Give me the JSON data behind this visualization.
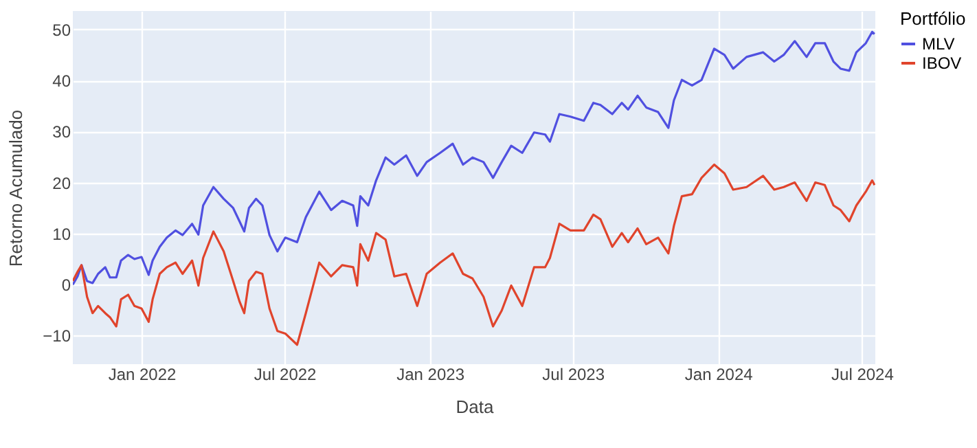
{
  "chart_data": {
    "type": "line",
    "xlabel": "Data",
    "ylabel": "Retorno Acumulado",
    "legend_title": "Portfólio",
    "legend": "top right",
    "grid": true,
    "line_style": "solid",
    "marker": "none",
    "xlim": [
      "2021-10-06",
      "2024-07-18"
    ],
    "xticks": [
      {
        "value": "2022-01-01",
        "label": "Jan 2022"
      },
      {
        "value": "2022-07-01",
        "label": "Jul 2022"
      },
      {
        "value": "2023-01-01",
        "label": "Jan 2023"
      },
      {
        "value": "2023-07-01",
        "label": "Jul 2023"
      },
      {
        "value": "2024-01-01",
        "label": "Jan 2024"
      },
      {
        "value": "2024-07-01",
        "label": "Jul 2024"
      }
    ],
    "ylim": [
      -15.6,
      53.6
    ],
    "yticks": [
      -10,
      0,
      10,
      20,
      30,
      40,
      50
    ],
    "x": [
      "2021-10-06",
      "2021-10-12",
      "2021-10-17",
      "2021-10-24",
      "2021-10-31",
      "2021-11-07",
      "2021-11-16",
      "2021-11-22",
      "2021-11-30",
      "2021-12-06",
      "2021-12-15",
      "2021-12-23",
      "2022-01-01",
      "2022-01-10",
      "2022-01-15",
      "2022-01-24",
      "2022-02-02",
      "2022-02-13",
      "2022-02-22",
      "2022-03-06",
      "2022-03-14",
      "2022-03-20",
      "2022-04-02",
      "2022-04-15",
      "2022-04-27",
      "2022-05-05",
      "2022-05-11",
      "2022-05-17",
      "2022-05-26",
      "2022-06-03",
      "2022-06-12",
      "2022-06-22",
      "2022-07-02",
      "2022-07-17",
      "2022-07-28",
      "2022-08-14",
      "2022-08-29",
      "2022-09-12",
      "2022-09-26",
      "2022-10-01",
      "2022-10-05",
      "2022-10-15",
      "2022-10-25",
      "2022-11-06",
      "2022-11-17",
      "2022-12-02",
      "2022-12-16",
      "2022-12-28",
      "2023-01-14",
      "2023-01-30",
      "2023-02-12",
      "2023-02-24",
      "2023-03-10",
      "2023-03-22",
      "2023-04-02",
      "2023-04-14",
      "2023-04-28",
      "2023-05-13",
      "2023-05-27",
      "2023-06-02",
      "2023-06-14",
      "2023-06-28",
      "2023-07-15",
      "2023-07-27",
      "2023-08-05",
      "2023-08-20",
      "2023-09-01",
      "2023-09-09",
      "2023-09-21",
      "2023-10-02",
      "2023-10-17",
      "2023-10-30",
      "2023-11-06",
      "2023-11-16",
      "2023-11-29",
      "2023-12-11",
      "2023-12-27",
      "2024-01-09",
      "2024-01-20",
      "2024-02-06",
      "2024-02-27",
      "2024-03-12",
      "2024-03-24",
      "2024-04-07",
      "2024-04-22",
      "2024-05-03",
      "2024-05-15",
      "2024-05-26",
      "2024-06-04",
      "2024-06-15",
      "2024-06-24",
      "2024-07-06",
      "2024-07-14",
      "2024-07-17"
    ],
    "series": [
      {
        "name": "MLV",
        "color": "#5050e0",
        "values": [
          0,
          1.6,
          3.8,
          0.7,
          0.3,
          2.1,
          3.4,
          1.4,
          1.4,
          4.7,
          5.8,
          5.0,
          5.4,
          1.9,
          4.7,
          7.4,
          9.2,
          10.6,
          9.7,
          11.9,
          9.8,
          15.5,
          19.1,
          16.8,
          15.0,
          12.4,
          10.4,
          15.0,
          16.8,
          15.5,
          9.7,
          6.5,
          9.2,
          8.3,
          13.2,
          18.2,
          14.6,
          16.4,
          15.5,
          11.5,
          17.3,
          15.5,
          20.4,
          24.9,
          23.5,
          25.3,
          21.3,
          24.0,
          25.8,
          27.6,
          23.5,
          24.9,
          24.0,
          20.9,
          24.0,
          27.2,
          25.8,
          29.8,
          29.4,
          28.0,
          33.4,
          32.9,
          32.1,
          35.6,
          35.2,
          33.4,
          35.6,
          34.3,
          37.0,
          34.7,
          33.8,
          30.7,
          36.1,
          40.1,
          39.0,
          40.1,
          46.2,
          45.0,
          42.3,
          44.6,
          45.5,
          43.7,
          45.0,
          47.7,
          44.6,
          47.3,
          47.3,
          43.7,
          42.3,
          41.9,
          45.5,
          47.3,
          49.5,
          49.1
        ]
      },
      {
        "name": "IBOV",
        "color": "#e0442c",
        "values": [
          0.7,
          2.5,
          3.8,
          -2.4,
          -5.6,
          -4.2,
          -5.6,
          -6.4,
          -8.2,
          -2.9,
          -2.0,
          -4.2,
          -4.7,
          -7.3,
          -2.9,
          2.1,
          3.4,
          4.3,
          2.1,
          4.7,
          -0.2,
          5.2,
          10.4,
          6.5,
          0.7,
          -3.3,
          -5.6,
          0.7,
          2.5,
          2.1,
          -4.7,
          -9.1,
          -9.6,
          -11.8,
          -5.6,
          4.3,
          1.6,
          3.8,
          3.4,
          -0.2,
          7.9,
          4.7,
          10.1,
          8.8,
          1.6,
          2.1,
          -4.2,
          2.1,
          4.3,
          6.1,
          2.1,
          1.2,
          -2.4,
          -8.2,
          -5.1,
          -0.2,
          -4.2,
          3.4,
          3.4,
          5.2,
          11.9,
          10.6,
          10.6,
          13.7,
          12.8,
          7.4,
          10.1,
          8.3,
          11.0,
          7.9,
          9.2,
          6.1,
          11.5,
          17.3,
          17.7,
          20.9,
          23.5,
          21.8,
          18.6,
          19.1,
          21.3,
          18.6,
          19.1,
          20.0,
          16.4,
          20.0,
          19.5,
          15.5,
          14.6,
          12.4,
          15.5,
          18.2,
          20.4,
          19.5
        ]
      }
    ]
  }
}
